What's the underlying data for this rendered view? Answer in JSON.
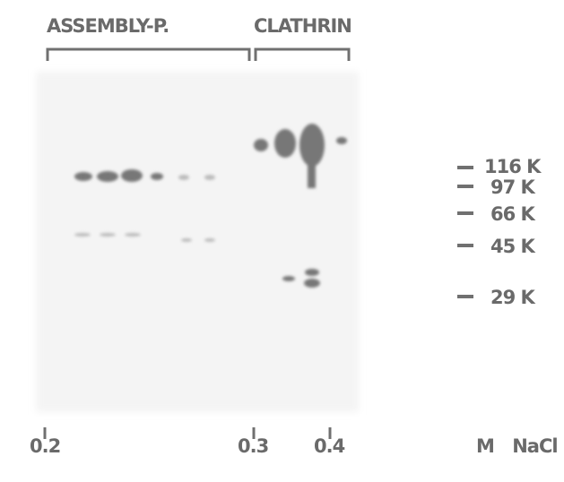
{
  "groups": [
    "ASSEMBLY-P.",
    "CLATHRIN"
  ],
  "markers": [
    "116 K",
    "97 K",
    "66 K",
    "45 K",
    "29 K"
  ],
  "axis": {
    "ticks": [
      "0.2",
      "0.3",
      "0.4"
    ],
    "unit": "M NaCl"
  }
}
